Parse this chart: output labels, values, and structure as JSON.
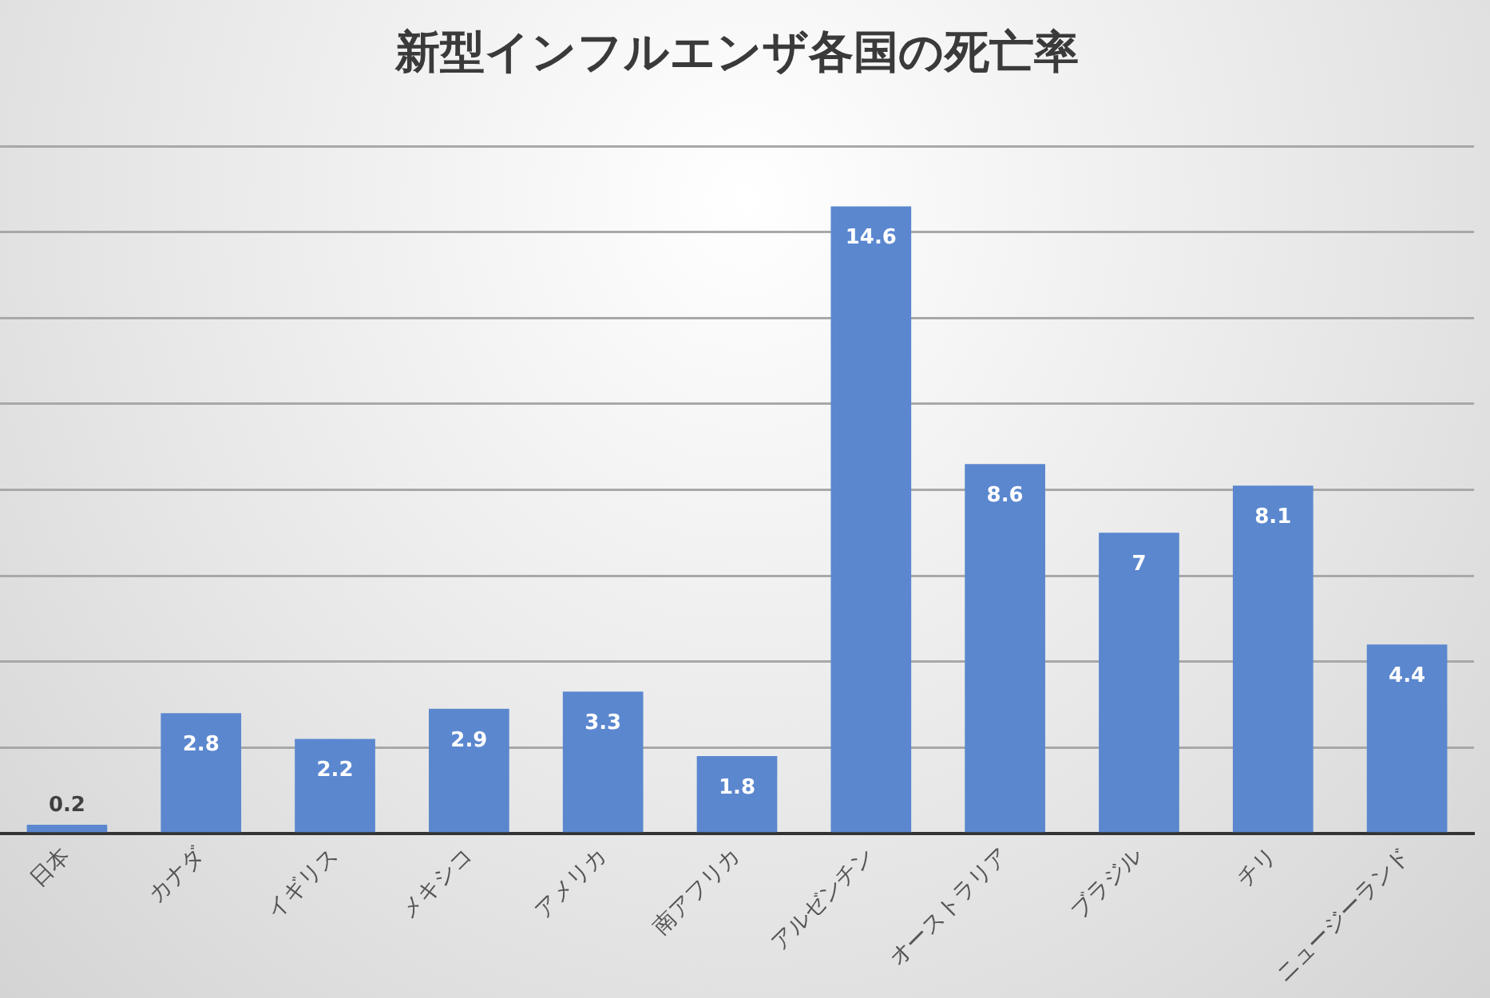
{
  "chart_data": {
    "type": "bar",
    "title": "新型インフルエンザ各国の死亡率",
    "categories": [
      "日本",
      "カナダ",
      "イギリス",
      "メキシコ",
      "アメリカ",
      "南アフリカ",
      "アルゼンチン",
      "オーストラリア",
      "ブラジル",
      "チリ",
      "ニュージーランド"
    ],
    "values": [
      0.2,
      2.8,
      2.2,
      2.9,
      3.3,
      1.8,
      14.6,
      8.6,
      7,
      8.1,
      4.4
    ],
    "color": "#5b87cf",
    "ylim": [
      0,
      16
    ],
    "yticks": [
      {
        "value": 0,
        "label": null
      },
      {
        "value": 2,
        "label": null
      },
      {
        "value": 4,
        "label": null
      },
      {
        "value": 6,
        "label": null
      },
      {
        "value": 8,
        "label": null
      },
      {
        "value": 10,
        "label": null
      },
      {
        "value": 12,
        "label": null
      },
      {
        "value": 14,
        "label": null
      },
      {
        "value": 16,
        "label": null
      }
    ],
    "tick_labels": "x",
    "grid": "y",
    "legend": false,
    "data_labels": true
  }
}
